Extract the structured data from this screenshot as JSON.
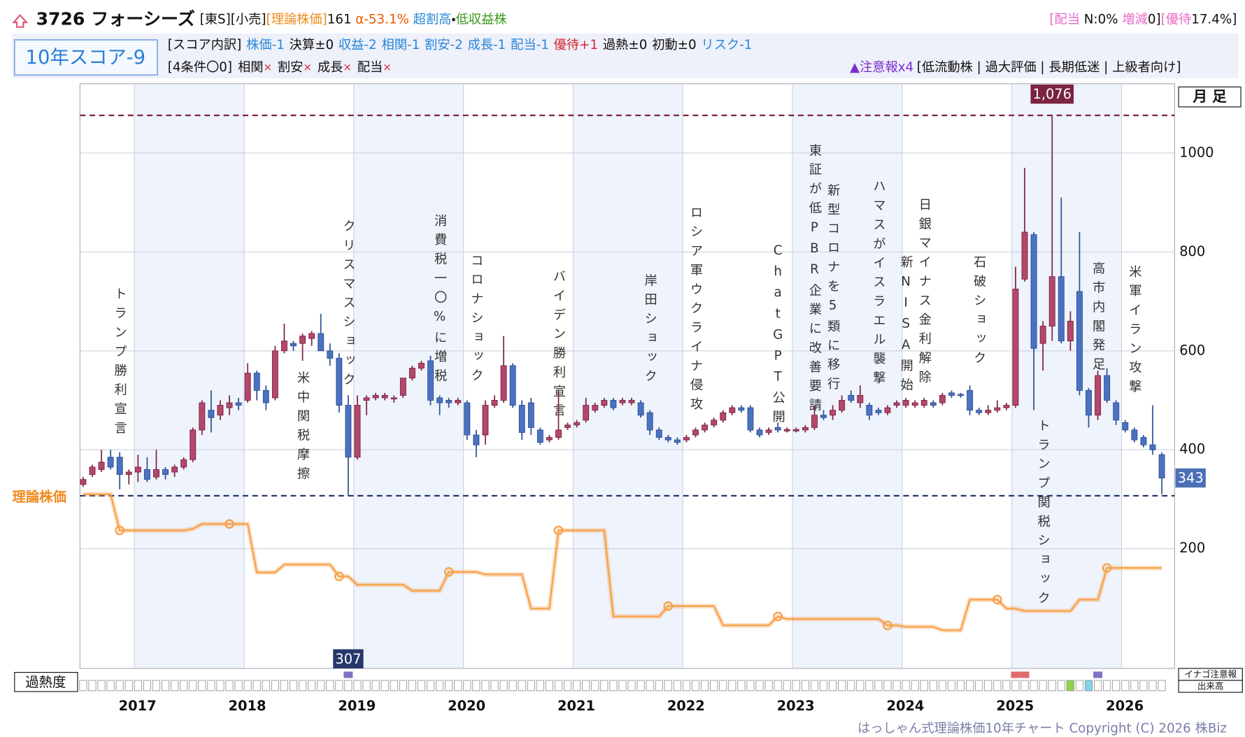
{
  "header": {
    "title": "3726 フォーシーズ",
    "tags": "[東S][小売]",
    "theory_label": "[理論株価]",
    "theory_value": 161,
    "alpha": "α-53.1%",
    "rating_a": "超割高",
    "rating_sep": "・",
    "rating_b": "低収益株",
    "right": [
      "[配当",
      " N:0%",
      " 増減",
      "0]",
      "[優待",
      "17.4%]"
    ]
  },
  "score": {
    "label": "10年スコア-9",
    "breakdown_label": "[スコア内訳]",
    "items": [
      "株価-1",
      "決算±0",
      "収益-2",
      "相関-1",
      "割安-2",
      "成長-1",
      "配当-1",
      "優待+1",
      "過熱±0",
      "初動±0",
      "リスク-1"
    ],
    "conditions_label": "[4条件〇0]",
    "conditions": [
      "相関",
      "割安",
      "成長",
      "配当"
    ],
    "condition_mark": "×",
    "warning": "▲注意報x4",
    "warning_tags": "[低流動株 | 過大評価 | 長期低迷 | 上級者向け]"
  },
  "chart_data": {
    "type": "candlestick",
    "period_label": "月 足",
    "theory_label": "理論株価",
    "up_color": "#b4476c",
    "down_color": "#4a72c0",
    "theory_color": "#f7a048",
    "ylim": [
      -42,
      1140
    ],
    "yticks": [
      200,
      400,
      600,
      800,
      1000
    ],
    "xlim": [
      -0.35,
      119.4
    ],
    "xticks": [
      {
        "value": 5.6,
        "label": "2017"
      },
      {
        "value": 17.6,
        "label": "2018"
      },
      {
        "value": 29.6,
        "label": "2019"
      },
      {
        "value": 41.6,
        "label": "2020"
      },
      {
        "value": 53.6,
        "label": "2021"
      },
      {
        "value": 65.6,
        "label": "2022"
      },
      {
        "value": 77.6,
        "label": "2023"
      },
      {
        "value": 89.6,
        "label": "2024"
      },
      {
        "value": 101.6,
        "label": "2025"
      },
      {
        "value": 113.6,
        "label": "2026"
      }
    ],
    "high": {
      "value": 1076,
      "label": "1,076"
    },
    "low": 307,
    "last": 343,
    "candles": [
      [
        330,
        345,
        325,
        340
      ],
      [
        350,
        370,
        345,
        365
      ],
      [
        360,
        400,
        355,
        375
      ],
      [
        385,
        400,
        360,
        365
      ],
      [
        385,
        395,
        320,
        350
      ],
      [
        350,
        360,
        330,
        355
      ],
      [
        355,
        390,
        335,
        365
      ],
      [
        360,
        385,
        335,
        340
      ],
      [
        345,
        400,
        340,
        360
      ],
      [
        360,
        365,
        340,
        350
      ],
      [
        355,
        370,
        345,
        365
      ],
      [
        365,
        385,
        360,
        380
      ],
      [
        380,
        445,
        375,
        440
      ],
      [
        440,
        500,
        430,
        495
      ],
      [
        480,
        520,
        435,
        465
      ],
      [
        470,
        500,
        460,
        490
      ],
      [
        485,
        510,
        470,
        495
      ],
      [
        495,
        505,
        480,
        490
      ],
      [
        500,
        575,
        495,
        555
      ],
      [
        555,
        560,
        500,
        520
      ],
      [
        520,
        530,
        480,
        495
      ],
      [
        505,
        610,
        500,
        600
      ],
      [
        600,
        655,
        595,
        620
      ],
      [
        615,
        620,
        600,
        610
      ],
      [
        615,
        635,
        580,
        630
      ],
      [
        625,
        640,
        610,
        635
      ],
      [
        635,
        675,
        600,
        600
      ],
      [
        600,
        615,
        570,
        585
      ],
      [
        585,
        595,
        475,
        490
      ],
      [
        490,
        510,
        307,
        385
      ],
      [
        385,
        510,
        380,
        490
      ],
      [
        500,
        510,
        470,
        505
      ],
      [
        505,
        515,
        500,
        510
      ],
      [
        505,
        515,
        500,
        510
      ],
      [
        505,
        510,
        495,
        505
      ],
      [
        510,
        545,
        505,
        545
      ],
      [
        545,
        570,
        540,
        565
      ],
      [
        565,
        580,
        560,
        575
      ],
      [
        580,
        590,
        490,
        500
      ],
      [
        505,
        510,
        470,
        495
      ],
      [
        500,
        505,
        485,
        495
      ],
      [
        495,
        505,
        490,
        500
      ],
      [
        495,
        500,
        420,
        430
      ],
      [
        430,
        440,
        385,
        410
      ],
      [
        430,
        500,
        410,
        490
      ],
      [
        490,
        510,
        485,
        500
      ],
      [
        500,
        630,
        495,
        570
      ],
      [
        570,
        575,
        485,
        490
      ],
      [
        490,
        500,
        420,
        435
      ],
      [
        495,
        505,
        430,
        445
      ],
      [
        440,
        445,
        410,
        415
      ],
      [
        420,
        430,
        415,
        425
      ],
      [
        425,
        520,
        420,
        440
      ],
      [
        445,
        455,
        440,
        450
      ],
      [
        450,
        460,
        445,
        455
      ],
      [
        460,
        505,
        455,
        490
      ],
      [
        480,
        495,
        475,
        490
      ],
      [
        490,
        505,
        485,
        500
      ],
      [
        500,
        505,
        480,
        485
      ],
      [
        495,
        505,
        490,
        500
      ],
      [
        495,
        505,
        490,
        500
      ],
      [
        495,
        500,
        465,
        470
      ],
      [
        475,
        480,
        430,
        440
      ],
      [
        440,
        445,
        420,
        425
      ],
      [
        425,
        430,
        415,
        420
      ],
      [
        420,
        425,
        410,
        415
      ],
      [
        420,
        430,
        415,
        425
      ],
      [
        430,
        445,
        425,
        440
      ],
      [
        440,
        455,
        435,
        450
      ],
      [
        450,
        465,
        445,
        460
      ],
      [
        460,
        480,
        455,
        475
      ],
      [
        475,
        490,
        470,
        485
      ],
      [
        485,
        490,
        475,
        480
      ],
      [
        485,
        490,
        435,
        440
      ],
      [
        440,
        445,
        425,
        430
      ],
      [
        435,
        445,
        430,
        440
      ],
      [
        445,
        455,
        435,
        440
      ],
      [
        438,
        445,
        435,
        441
      ],
      [
        438,
        445,
        435,
        441
      ],
      [
        440,
        450,
        435,
        445
      ],
      [
        445,
        490,
        440,
        470
      ],
      [
        470,
        480,
        460,
        465
      ],
      [
        470,
        490,
        460,
        480
      ],
      [
        480,
        510,
        475,
        500
      ],
      [
        510,
        520,
        495,
        500
      ],
      [
        495,
        530,
        485,
        510
      ],
      [
        490,
        495,
        460,
        470
      ],
      [
        480,
        485,
        470,
        475
      ],
      [
        475,
        490,
        470,
        485
      ],
      [
        490,
        500,
        485,
        495
      ],
      [
        490,
        505,
        485,
        500
      ],
      [
        490,
        500,
        485,
        495
      ],
      [
        490,
        505,
        485,
        500
      ],
      [
        495,
        500,
        485,
        490
      ],
      [
        495,
        515,
        490,
        510
      ],
      [
        515,
        520,
        505,
        510
      ],
      [
        512,
        515,
        505,
        510
      ],
      [
        520,
        530,
        470,
        480
      ],
      [
        480,
        485,
        470,
        475
      ],
      [
        475,
        490,
        470,
        480
      ],
      [
        480,
        500,
        475,
        485
      ],
      [
        485,
        495,
        480,
        490
      ],
      [
        490,
        770,
        485,
        725
      ],
      [
        745,
        970,
        740,
        840
      ],
      [
        835,
        840,
        480,
        605
      ],
      [
        615,
        660,
        560,
        650
      ],
      [
        650,
        1076,
        620,
        750
      ],
      [
        750,
        910,
        615,
        620
      ],
      [
        620,
        680,
        600,
        660
      ],
      [
        720,
        840,
        510,
        520
      ],
      [
        520,
        525,
        445,
        470
      ],
      [
        470,
        560,
        460,
        550
      ],
      [
        550,
        565,
        495,
        500
      ],
      [
        495,
        500,
        450,
        460
      ],
      [
        455,
        460,
        435,
        440
      ],
      [
        440,
        445,
        415,
        420
      ],
      [
        425,
        430,
        405,
        410
      ],
      [
        410,
        490,
        390,
        400
      ],
      [
        390,
        395,
        310,
        343
      ]
    ],
    "theory": [
      310,
      310,
      310,
      310,
      237,
      237,
      237,
      237,
      237,
      237,
      237,
      237,
      240,
      250,
      250,
      250,
      250,
      250,
      250,
      152,
      152,
      152,
      168,
      168,
      168,
      168,
      168,
      168,
      144,
      144,
      127,
      127,
      127,
      127,
      127,
      127,
      115,
      115,
      115,
      115,
      153,
      153,
      153,
      153,
      148,
      148,
      148,
      148,
      148,
      79,
      79,
      79,
      237,
      237,
      237,
      237,
      237,
      237,
      63,
      63,
      63,
      63,
      63,
      63,
      84,
      84,
      84,
      84,
      84,
      84,
      45,
      45,
      45,
      45,
      45,
      45,
      63,
      58,
      58,
      58,
      58,
      58,
      58,
      58,
      58,
      58,
      58,
      58,
      45,
      45,
      42,
      42,
      42,
      42,
      35,
      35,
      35,
      97,
      97,
      97,
      97,
      79,
      79,
      74,
      74,
      74,
      74,
      74,
      74,
      97,
      97,
      97,
      161,
      161,
      161,
      161,
      161,
      161,
      161
    ],
    "annotations": [
      {
        "text": "トランプ勝利宣言",
        "x": 4
      },
      {
        "text": "米中関税摩擦",
        "x": 24
      },
      {
        "text": "クリスマスショック",
        "x": 29
      },
      {
        "text": "消費税一〇%に増税",
        "x": 39
      },
      {
        "text": "コロナショック",
        "x": 43
      },
      {
        "text": "バイデン勝利宣言",
        "x": 52
      },
      {
        "text": "岸田ショック",
        "x": 62
      },
      {
        "text": "ロシア軍ウクライナ侵攻",
        "x": 67
      },
      {
        "text": "ChatGPT公開",
        "x": 76
      },
      {
        "text": "東証が低PBR企業に改善要請",
        "x": 80
      },
      {
        "text": "新型コロナを5類に移行",
        "x": 82
      },
      {
        "text": "ハマスがイスラエル襲撃",
        "x": 87
      },
      {
        "text": "新NISA開始",
        "x": 90
      },
      {
        "text": "日銀マイナス金利解除",
        "x": 92
      },
      {
        "text": "石破ショック",
        "x": 98
      },
      {
        "text": "トランプ関税ショック",
        "x": 105
      },
      {
        "text": "高市内閣発足",
        "x": 111
      },
      {
        "text": "米軍イラン攻撃",
        "x": 115
      }
    ],
    "overheat_label": "過熱度",
    "inago_label": "イナゴ注意報",
    "volume_label": "出来高",
    "inago": [
      {
        "index": 29,
        "color": "#7d74c4"
      },
      {
        "index": 102,
        "color": "#e06b6b"
      },
      {
        "index": 103,
        "color": "#e06b6b"
      },
      {
        "index": 111,
        "color": "#7d74c4"
      }
    ],
    "overheat": [
      {
        "index": 108,
        "color": "#8cd44a"
      },
      {
        "index": 110,
        "color": "#82d2ea"
      }
    ]
  },
  "footer": "はっしゃん式理論株価10年チャート Copyright (C) 2026 株Biz"
}
